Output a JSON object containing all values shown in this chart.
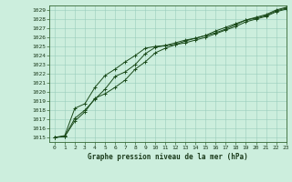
{
  "title": "Graphe pression niveau de la mer (hPa)",
  "background_color": "#cceedd",
  "grid_color": "#99ccbb",
  "line_color": "#1a4a1a",
  "xlim": [
    -0.5,
    23
  ],
  "ylim": [
    1014.5,
    1029.5
  ],
  "yticks": [
    1015,
    1016,
    1017,
    1018,
    1019,
    1020,
    1021,
    1022,
    1023,
    1024,
    1025,
    1026,
    1027,
    1028,
    1029
  ],
  "xticks": [
    0,
    1,
    2,
    3,
    4,
    5,
    6,
    7,
    8,
    9,
    10,
    11,
    12,
    13,
    14,
    15,
    16,
    17,
    18,
    19,
    20,
    21,
    22,
    23
  ],
  "line1": [
    1015.0,
    1015.1,
    1017.1,
    1018.0,
    1019.2,
    1020.3,
    1021.7,
    1022.2,
    1023.0,
    1024.2,
    1024.9,
    1025.1,
    1025.4,
    1025.7,
    1025.9,
    1026.2,
    1026.5,
    1026.9,
    1027.4,
    1027.9,
    1028.1,
    1028.4,
    1028.9,
    1029.2
  ],
  "line2": [
    1015.0,
    1015.2,
    1018.2,
    1018.7,
    1020.5,
    1021.8,
    1022.5,
    1023.3,
    1024.0,
    1024.8,
    1025.0,
    1025.1,
    1025.2,
    1025.4,
    1025.7,
    1026.0,
    1026.4,
    1026.8,
    1027.2,
    1027.7,
    1028.0,
    1028.3,
    1028.8,
    1029.1
  ],
  "line3": [
    1015.0,
    1015.1,
    1016.8,
    1017.8,
    1019.3,
    1019.8,
    1020.5,
    1021.3,
    1022.5,
    1023.3,
    1024.3,
    1024.8,
    1025.2,
    1025.6,
    1025.9,
    1026.2,
    1026.7,
    1027.1,
    1027.5,
    1027.9,
    1028.2,
    1028.5,
    1029.0,
    1029.3
  ],
  "tick_fontsize": 4.5,
  "xlabel_fontsize": 5.5
}
